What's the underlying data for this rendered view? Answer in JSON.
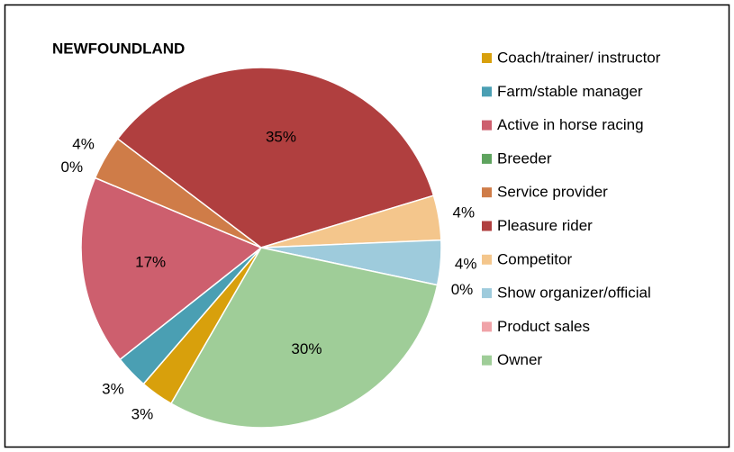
{
  "chart_data": {
    "type": "pie",
    "title": "NEWFOUNDLAND",
    "categories": [
      "Coach/trainer/ instructor",
      "Farm/stable manager",
      "Active in horse racing",
      "Breeder",
      "Service provider",
      "Pleasure rider",
      "Competitor",
      "Show organizer/official",
      "Product sales",
      "Owner"
    ],
    "values": [
      3,
      3,
      17,
      0,
      4,
      35,
      4,
      4,
      0,
      30
    ],
    "value_labels": [
      "3%",
      "3%",
      "17%",
      "0%",
      "4%",
      "35%",
      "4%",
      "4%",
      "0%",
      "30%"
    ],
    "colors": [
      "#d8a00c",
      "#4a9fb3",
      "#cd5f6e",
      "#5ea35e",
      "#cf7c48",
      "#b03f3f",
      "#f4c68c",
      "#9ecbdc",
      "#f0a3a8",
      "#9fcd98"
    ],
    "start_angle": 210,
    "legend": "right"
  }
}
